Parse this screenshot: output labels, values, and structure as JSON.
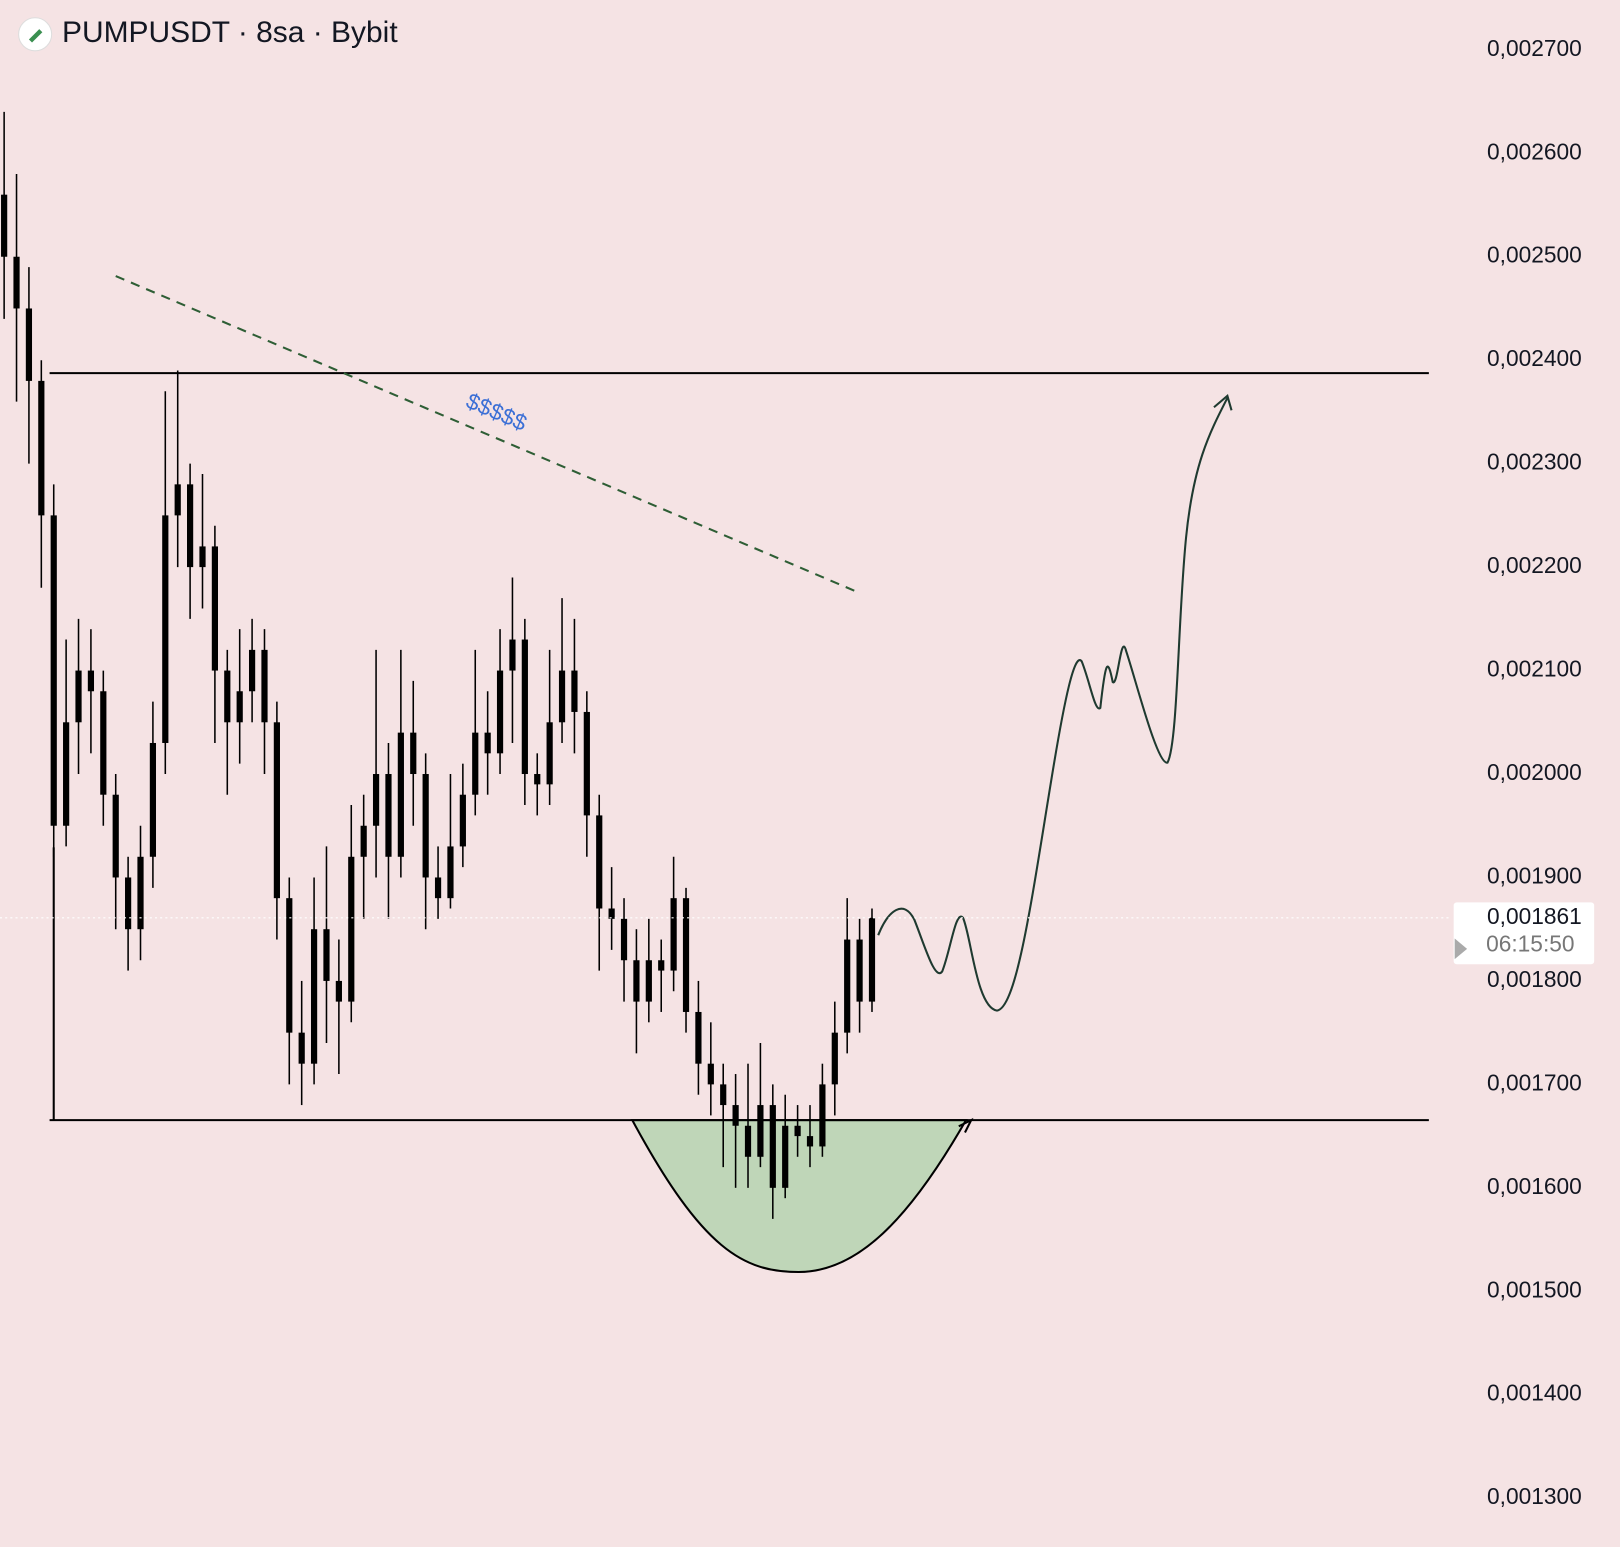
{
  "header": {
    "title": "PUMPUSDT · 8sa · Bybit"
  },
  "chart_data": {
    "type": "candlestick",
    "color": "#000000",
    "open": [
      0.00256,
      0.0025,
      0.00245,
      0.00238,
      0.00225,
      0.00195,
      0.00205,
      0.0021,
      0.00208,
      0.00198,
      0.0019,
      0.00185,
      0.00192,
      0.00203,
      0.00225,
      0.00228,
      0.0022,
      0.00222,
      0.0021,
      0.00205,
      0.00208,
      0.00212,
      0.00205,
      0.00188,
      0.00175,
      0.00172,
      0.00185,
      0.0018,
      0.00178,
      0.00192,
      0.00195,
      0.002,
      0.00192,
      0.00204,
      0.002,
      0.0019,
      0.00188,
      0.00193,
      0.00198,
      0.00204,
      0.00202,
      0.0021,
      0.00213,
      0.002,
      0.00199,
      0.00205,
      0.0021,
      0.00206,
      0.00196,
      0.00187,
      0.00186,
      0.00182,
      0.00178,
      0.00182,
      0.00181,
      0.00188,
      0.00177,
      0.00172,
      0.0017,
      0.00168,
      0.00166,
      0.00163,
      0.00168,
      0.0016,
      0.00166,
      0.00165,
      0.00164,
      0.0017,
      0.00175,
      0.00184,
      0.00178
    ],
    "high": [
      0.00264,
      0.00258,
      0.00249,
      0.0024,
      0.00228,
      0.00213,
      0.00215,
      0.00214,
      0.0021,
      0.002,
      0.00192,
      0.00195,
      0.00207,
      0.00237,
      0.00239,
      0.0023,
      0.00229,
      0.00224,
      0.00212,
      0.00214,
      0.00215,
      0.00214,
      0.00207,
      0.0019,
      0.0018,
      0.0019,
      0.00193,
      0.00184,
      0.00197,
      0.00198,
      0.00212,
      0.00203,
      0.00212,
      0.00209,
      0.00202,
      0.00193,
      0.002,
      0.00201,
      0.00212,
      0.00208,
      0.00214,
      0.00219,
      0.00215,
      0.00202,
      0.00212,
      0.00217,
      0.00215,
      0.00208,
      0.00198,
      0.00191,
      0.00188,
      0.00185,
      0.00186,
      0.00184,
      0.00192,
      0.00189,
      0.0018,
      0.00176,
      0.00172,
      0.00171,
      0.00172,
      0.00174,
      0.0017,
      0.00169,
      0.00168,
      0.00168,
      0.00172,
      0.00178,
      0.00188,
      0.00186,
      0.00187
    ],
    "low": [
      0.00244,
      0.00236,
      0.0023,
      0.00218,
      0.00192,
      0.00193,
      0.002,
      0.00202,
      0.00195,
      0.00185,
      0.00181,
      0.00182,
      0.00189,
      0.002,
      0.0022,
      0.00215,
      0.00216,
      0.00203,
      0.00198,
      0.00201,
      0.00205,
      0.002,
      0.00184,
      0.0017,
      0.00168,
      0.0017,
      0.00174,
      0.00171,
      0.00176,
      0.00186,
      0.0019,
      0.00186,
      0.0019,
      0.00195,
      0.00185,
      0.00186,
      0.00187,
      0.00191,
      0.00196,
      0.00198,
      0.002,
      0.00203,
      0.00197,
      0.00196,
      0.00197,
      0.00203,
      0.00202,
      0.00192,
      0.00181,
      0.00183,
      0.00178,
      0.00173,
      0.00176,
      0.00177,
      0.00179,
      0.00175,
      0.00169,
      0.00167,
      0.00162,
      0.0016,
      0.0016,
      0.00162,
      0.00157,
      0.00159,
      0.00163,
      0.00162,
      0.00163,
      0.00167,
      0.00173,
      0.00175,
      0.00177
    ],
    "close": [
      0.0025,
      0.00245,
      0.00238,
      0.00225,
      0.00195,
      0.00205,
      0.0021,
      0.00208,
      0.00198,
      0.0019,
      0.00185,
      0.00192,
      0.00203,
      0.00225,
      0.00228,
      0.0022,
      0.00222,
      0.0021,
      0.00205,
      0.00208,
      0.00212,
      0.00205,
      0.00188,
      0.00175,
      0.00172,
      0.00185,
      0.0018,
      0.00178,
      0.00192,
      0.00195,
      0.002,
      0.00192,
      0.00204,
      0.002,
      0.0019,
      0.00188,
      0.00193,
      0.00198,
      0.00204,
      0.00202,
      0.0021,
      0.00213,
      0.002,
      0.00199,
      0.00205,
      0.0021,
      0.00206,
      0.00196,
      0.00187,
      0.00186,
      0.00182,
      0.00178,
      0.00182,
      0.00181,
      0.00188,
      0.00177,
      0.00172,
      0.0017,
      0.00168,
      0.00166,
      0.00163,
      0.00168,
      0.0016,
      0.00166,
      0.00165,
      0.00164,
      0.0017,
      0.00175,
      0.00184,
      0.00178,
      0.001861
    ],
    "ylim": [
      0.001253,
      0.002748
    ],
    "yticks": [
      {
        "value": 0.0027,
        "label": "0,002700"
      },
      {
        "value": 0.0026,
        "label": "0,002600"
      },
      {
        "value": 0.0025,
        "label": "0,002500"
      },
      {
        "value": 0.0024,
        "label": "0,002400"
      },
      {
        "value": 0.0023,
        "label": "0,002300"
      },
      {
        "value": 0.0022,
        "label": "0,002200"
      },
      {
        "value": 0.0021,
        "label": "0,002100"
      },
      {
        "value": 0.002,
        "label": "0,002000"
      },
      {
        "value": 0.0019,
        "label": "0,001900"
      },
      {
        "value": 0.0018,
        "label": "0,001800"
      },
      {
        "value": 0.0017,
        "label": "0,001700"
      },
      {
        "value": 0.0016,
        "label": "0,001600"
      },
      {
        "value": 0.0015,
        "label": "0,001500"
      },
      {
        "value": 0.0014,
        "label": "0,001400"
      },
      {
        "value": 0.0013,
        "label": "0,001300"
      }
    ],
    "last_price": {
      "value": 0.001861,
      "label": "0,001861"
    },
    "countdown": "06:15:50",
    "annotation": "$$$$$"
  }
}
